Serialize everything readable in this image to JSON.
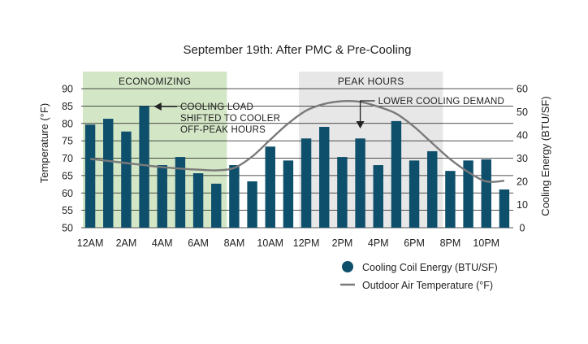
{
  "chart_data": {
    "type": "bar+line",
    "title": "September 19th: After PMC & Pre-Cooling",
    "categories": [
      "12AM",
      "1AM",
      "2AM",
      "3AM",
      "4AM",
      "5AM",
      "6AM",
      "7AM",
      "8AM",
      "9AM",
      "10AM",
      "11AM",
      "12PM",
      "1PM",
      "2PM",
      "3PM",
      "4PM",
      "5PM",
      "6PM",
      "7PM",
      "8PM",
      "9PM",
      "10PM",
      "11PM"
    ],
    "x_tick_labels": [
      "12AM",
      "2AM",
      "4AM",
      "6AM",
      "8AM",
      "10AM",
      "12PM",
      "2PM",
      "4PM",
      "6PM",
      "8PM",
      "10PM"
    ],
    "ylabel_left": "Temperature (°F)",
    "ylabel_right": "Cooling Energy (BTU/SF)",
    "y_left_ticks": [
      "50",
      "55",
      "60",
      "65",
      "70",
      "75",
      "80",
      "85",
      "90"
    ],
    "y_left_range": [
      50,
      90
    ],
    "y_right_ticks": [
      "0",
      "10",
      "20",
      "30",
      "40",
      "50",
      "60"
    ],
    "y_right_range": [
      0,
      60
    ],
    "series": [
      {
        "name": "Cooling Coil Energy (BTU/SF)",
        "type": "bar",
        "axis": "right",
        "color": "#0e4f6b",
        "values": [
          44.5,
          47,
          41.5,
          52.5,
          27,
          30.5,
          23.5,
          19,
          27,
          20,
          35,
          29,
          38.5,
          43.5,
          30.5,
          38.5,
          27,
          46,
          29,
          33,
          24.5,
          29,
          29.5,
          16.5
        ]
      },
      {
        "name": "Outdoor Air Temperature (°F)",
        "type": "line",
        "axis": "left",
        "color": "#7a7a7a",
        "values": [
          69.8,
          69.2,
          68.6,
          68.0,
          67.4,
          67.0,
          66.7,
          66.5,
          67.2,
          70.5,
          75.3,
          80.0,
          83.7,
          85.6,
          86.4,
          86.2,
          84.8,
          82.8,
          79.0,
          74.3,
          69.7,
          66.0,
          63.3,
          63.5
        ]
      }
    ],
    "bands": [
      {
        "label": "ECONOMIZING",
        "from": "12AM",
        "to": "7AM",
        "color": "#d3e6c6"
      },
      {
        "label": "PEAK HOURS",
        "from": "12PM",
        "to": "7PM",
        "color": "#e7e7e8"
      }
    ],
    "annotations": [
      {
        "lines": [
          "COOLING LOAD",
          "SHIFTED TO COOLER",
          "OFF-PEAK HOURS"
        ],
        "target": "3AM"
      },
      {
        "lines": [
          "LOWER COOLING DEMAND"
        ],
        "target": "3PM"
      }
    ],
    "legend": {
      "position": "bottom-right",
      "items": [
        {
          "label": "Cooling Coil Energy (BTU/SF)",
          "marker": "circle",
          "color": "#0e4f6b"
        },
        {
          "label": "Outdoor Air Temperature (°F)",
          "marker": "line",
          "color": "#7a7a7a"
        }
      ]
    }
  }
}
